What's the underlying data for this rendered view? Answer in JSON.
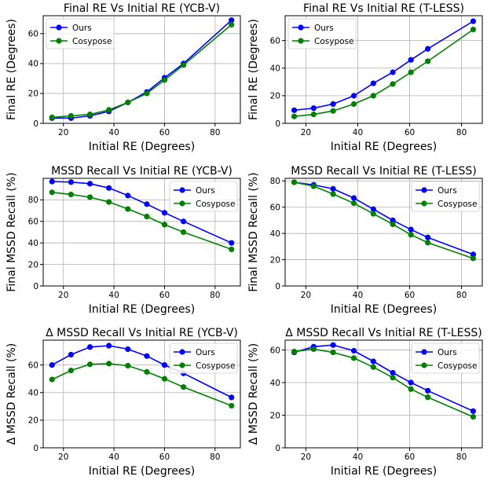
{
  "chart_data": [
    {
      "type": "line",
      "title": "Final RE Vs Initial RE (YCB-V)",
      "xlabel": "Initial RE (Degrees)",
      "ylabel": "Final RE (Degrees)",
      "xlim": [
        12,
        90
      ],
      "ylim": [
        0,
        72
      ],
      "xticks": [
        20,
        40,
        60,
        80
      ],
      "yticks": [
        0,
        20,
        40,
        60
      ],
      "grid": true,
      "legend": "upper-left",
      "series": [
        {
          "name": "Ours",
          "color": "#0000ff",
          "x": [
            15.5,
            23,
            30.5,
            38,
            45.5,
            53,
            60,
            67.5,
            86.5
          ],
          "y": [
            3.5,
            3.5,
            5,
            8,
            14,
            21,
            30.5,
            40,
            69
          ]
        },
        {
          "name": "Cosypose",
          "color": "#008000",
          "x": [
            15.5,
            23,
            30.5,
            38,
            45.5,
            53,
            60,
            67.5,
            86.5
          ],
          "y": [
            4,
            5,
            6,
            9,
            14,
            20,
            29,
            39,
            66
          ]
        }
      ]
    },
    {
      "type": "line",
      "title": "Final RE Vs Initial RE (T-LESS)",
      "xlabel": "Initial RE (Degrees)",
      "ylabel": "Final RE (Degrees)",
      "xlim": [
        12,
        88
      ],
      "ylim": [
        0,
        78
      ],
      "xticks": [
        20,
        40,
        60,
        80
      ],
      "yticks": [
        0,
        20,
        40,
        60
      ],
      "grid": true,
      "legend": "upper-left",
      "series": [
        {
          "name": "Ours",
          "color": "#0000ff",
          "x": [
            15.5,
            23,
            30.5,
            38.5,
            46,
            53.5,
            60.5,
            67,
            84.5
          ],
          "y": [
            9.5,
            11,
            14,
            20,
            29,
            37,
            46,
            54,
            74
          ]
        },
        {
          "name": "Cosypose",
          "color": "#008000",
          "x": [
            15.5,
            23,
            30.5,
            38.5,
            46,
            53.5,
            60.5,
            67,
            84.5
          ],
          "y": [
            5,
            6.5,
            9,
            14,
            20,
            28.5,
            37,
            45,
            68
          ]
        }
      ]
    },
    {
      "type": "line",
      "title": "MSSD Recall Vs Initial RE (YCB-V)",
      "xlabel": "Initial RE (Degrees)",
      "ylabel": "Final MSSD Recall (%)",
      "xlim": [
        12,
        90
      ],
      "ylim": [
        0,
        100
      ],
      "xticks": [
        20,
        40,
        60,
        80
      ],
      "yticks": [
        0,
        20,
        40,
        60,
        80
      ],
      "grid": true,
      "legend": "upper-right",
      "series": [
        {
          "name": "Ours",
          "color": "#0000ff",
          "x": [
            15.5,
            23,
            30.5,
            38,
            45.5,
            53,
            60,
            67.5,
            86.5
          ],
          "y": [
            97,
            96.5,
            95,
            91,
            84,
            76,
            68,
            60,
            40
          ]
        },
        {
          "name": "Cosypose",
          "color": "#008000",
          "x": [
            15.5,
            23,
            30.5,
            38,
            45.5,
            53,
            60,
            67.5,
            86.5
          ],
          "y": [
            87,
            85,
            82.5,
            78,
            71.5,
            64.5,
            57,
            50,
            34
          ]
        }
      ]
    },
    {
      "type": "line",
      "title": "MSSD Recall Vs Initial RE (T-LESS)",
      "xlabel": "Initial RE (Degrees)",
      "ylabel": "Final MSSD Recall (%)",
      "xlim": [
        12,
        88
      ],
      "ylim": [
        0,
        82
      ],
      "xticks": [
        20,
        40,
        60,
        80
      ],
      "yticks": [
        0,
        20,
        40,
        60,
        80
      ],
      "grid": true,
      "legend": "upper-right",
      "series": [
        {
          "name": "Ours",
          "color": "#0000ff",
          "x": [
            15.5,
            23,
            30.5,
            38.5,
            46,
            53.5,
            60.5,
            67,
            84.5
          ],
          "y": [
            79,
            77,
            74,
            67,
            58.5,
            50,
            43,
            37,
            24
          ]
        },
        {
          "name": "Cosypose",
          "color": "#008000",
          "x": [
            15.5,
            23,
            30.5,
            38.5,
            46,
            53.5,
            60.5,
            67,
            84.5
          ],
          "y": [
            79,
            76,
            70,
            63,
            55,
            47,
            39,
            33,
            21
          ]
        }
      ]
    },
    {
      "type": "line",
      "title": "Δ MSSD Recall Vs Initial RE (YCB-V)",
      "xlabel": "Initial RE (Degrees)",
      "ylabel": "Δ MSSD Recall (%)",
      "xlim": [
        12,
        90
      ],
      "ylim": [
        0,
        78
      ],
      "xticks": [
        20,
        40,
        60,
        80
      ],
      "yticks": [
        0,
        20,
        40,
        60
      ],
      "grid": true,
      "legend": "upper-right",
      "series": [
        {
          "name": "Ours",
          "color": "#0000ff",
          "x": [
            15.5,
            23,
            30.5,
            38,
            45.5,
            53,
            60,
            67.5,
            86.5
          ],
          "y": [
            60,
            67.5,
            73,
            74,
            71.5,
            66.5,
            60,
            54,
            36.5
          ]
        },
        {
          "name": "Cosypose",
          "color": "#008000",
          "x": [
            15.5,
            23,
            30.5,
            38,
            45.5,
            53,
            60,
            67.5,
            86.5
          ],
          "y": [
            49.5,
            56,
            60.5,
            61,
            59.5,
            55,
            50,
            44,
            30.5
          ]
        }
      ]
    },
    {
      "type": "line",
      "title": "Δ MSSD Recall Vs Initial RE (T-LESS)",
      "xlabel": "Initial RE (Degrees)",
      "ylabel": "Δ MSSD Recall (%)",
      "xlim": [
        12,
        88
      ],
      "ylim": [
        0,
        66
      ],
      "xticks": [
        20,
        40,
        60,
        80
      ],
      "yticks": [
        0,
        20,
        40,
        60
      ],
      "grid": true,
      "legend": "upper-right",
      "series": [
        {
          "name": "Ours",
          "color": "#0000ff",
          "x": [
            15.5,
            23,
            30.5,
            38.5,
            46,
            53.5,
            60.5,
            67,
            84.5
          ],
          "y": [
            58.5,
            62,
            63,
            59.5,
            53,
            46,
            40,
            35,
            22.5
          ]
        },
        {
          "name": "Cosypose",
          "color": "#008000",
          "x": [
            15.5,
            23,
            30.5,
            38.5,
            46,
            53.5,
            60.5,
            67,
            84.5
          ],
          "y": [
            59,
            60.5,
            58.5,
            55,
            49.5,
            43,
            36,
            31,
            19
          ]
        }
      ]
    }
  ]
}
